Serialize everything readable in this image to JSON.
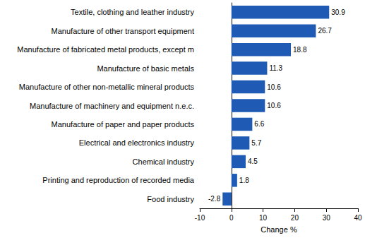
{
  "chart_data": {
    "type": "bar",
    "orientation": "horizontal",
    "x_label": "Change %",
    "categories": [
      "Textile, clothing and leather industry",
      "Manufacture of other transport equipment",
      "Manufacture of fabricated metal products, except m",
      "Manufacture of basic metals",
      "Manufacture of other non-metallic mineral products",
      "Manufacture of machinery and equipment n.e.c.",
      "Manufacture of paper and paper products",
      "Electrical and electronics industry",
      "Chemical industry",
      "Printing and reproduction of recorded media",
      "Food industry"
    ],
    "values": [
      30.9,
      26.7,
      18.8,
      11.3,
      10.6,
      10.6,
      6.6,
      5.7,
      4.5,
      1.8,
      -2.8
    ],
    "color": "#1f5bb5",
    "xlim": [
      -10,
      40
    ],
    "xticks": [
      -10,
      0,
      10,
      20,
      30,
      40
    ],
    "grid": false,
    "data_labels": true
  }
}
